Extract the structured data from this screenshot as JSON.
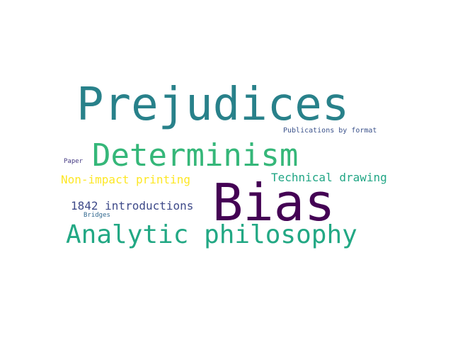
{
  "words": [
    {
      "text": "Prejudices",
      "color": "#28818a"
    },
    {
      "text": "Publications by format",
      "color": "#3b528b"
    },
    {
      "text": "Determinism",
      "color": "#35b779"
    },
    {
      "text": "Paper",
      "color": "#443983"
    },
    {
      "text": "Non-impact printing",
      "color": "#fde725"
    },
    {
      "text": "Technical drawing",
      "color": "#21a685"
    },
    {
      "text": "Bias",
      "color": "#440154"
    },
    {
      "text": "1842 introductions",
      "color": "#3e4a89"
    },
    {
      "text": "Bridges",
      "color": "#31688e"
    },
    {
      "text": "Analytic philosophy",
      "color": "#22a884"
    }
  ]
}
